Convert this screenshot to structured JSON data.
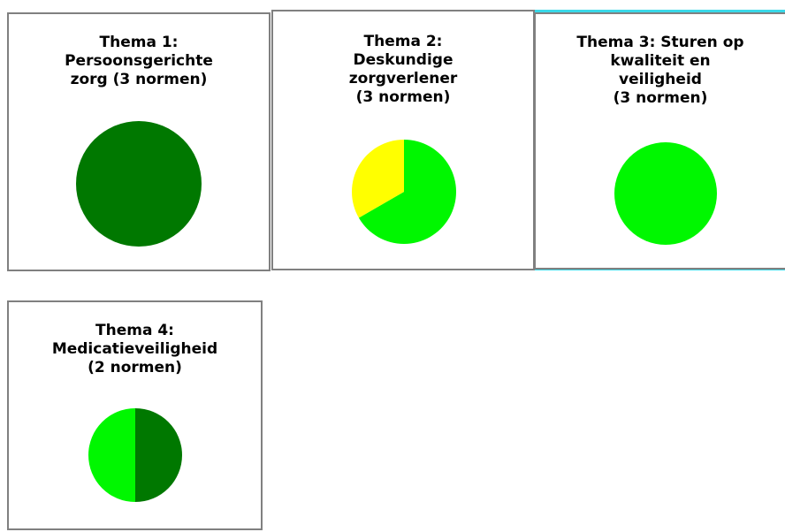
{
  "colors": {
    "dark_green": "#007800",
    "bright_green": "#00f700",
    "yellow": "#ffff00",
    "card_border": "#808080",
    "accent": "#3ad8e8"
  },
  "chart_data": [
    {
      "type": "pie",
      "title": "Thema 1:\nPersoonsgerichte\nzorg (3 normen)",
      "slices": [
        {
          "color": "#007800",
          "value": 3
        }
      ]
    },
    {
      "type": "pie",
      "title": "Thema 2:\nDeskundige\nzorgverlener\n(3 normen)",
      "slices": [
        {
          "color": "#00f700",
          "value": 2
        },
        {
          "color": "#ffff00",
          "value": 1
        }
      ]
    },
    {
      "type": "pie",
      "title": "Thema 3: Sturen op\nkwaliteit  en\nveiligheid\n(3 normen)",
      "slices": [
        {
          "color": "#00f700",
          "value": 3
        }
      ]
    },
    {
      "type": "pie",
      "title": "Thema 4:\nMedicatieveiligheid\n(2 normen)",
      "slices": [
        {
          "color": "#007800",
          "value": 1
        },
        {
          "color": "#00f700",
          "value": 1
        }
      ]
    }
  ]
}
